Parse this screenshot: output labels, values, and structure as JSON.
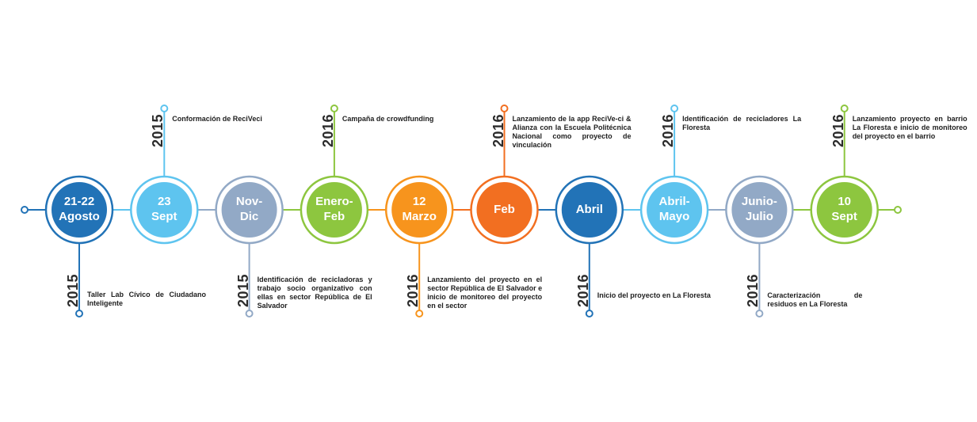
{
  "colors": {
    "dark_blue": "#2273b7",
    "light_blue": "#5ec4ef",
    "gray_blue": "#92a9c6",
    "green": "#8dc63f",
    "orange": "#f7941d",
    "deep_orange": "#f26f21"
  },
  "events": [
    {
      "date_line1": "21-22",
      "date_line2": "Agosto",
      "year": "2015",
      "text": "Taller Lab Cívico de Ciudadano Inteligente",
      "side": "below",
      "color": "#2273b7"
    },
    {
      "date_line1": "23",
      "date_line2": "Sept",
      "year": "2015",
      "text": "Conformación de ReciVeci",
      "side": "above",
      "color": "#5ec4ef"
    },
    {
      "date_line1": "Nov-",
      "date_line2": "Dic",
      "year": "2015",
      "text": "Identificación de recicladoras y trabajo socio organizativo con ellas en sector República de El Salvador",
      "side": "below",
      "color": "#92a9c6"
    },
    {
      "date_line1": "Enero-",
      "date_line2": "Feb",
      "year": "2016",
      "text": "Campaña de crowdfunding",
      "side": "above",
      "color": "#8dc63f"
    },
    {
      "date_line1": "12",
      "date_line2": "Marzo",
      "year": "2016",
      "text": "Lanzamiento del proyecto en el sector República de El Salvador e inicio de monitoreo del proyecto en el sector",
      "side": "below",
      "color": "#f7941d"
    },
    {
      "date_line1": "Feb",
      "date_line2": "",
      "year": "2016",
      "text": "Lanzamiento de la app ReciVe-ci & Alianza con la Escuela Politécnica Nacional como proyecto de vinculación",
      "side": "above",
      "color": "#f26f21"
    },
    {
      "date_line1": "Abril",
      "date_line2": "",
      "year": "2016",
      "text": "Inicio del proyecto en La Floresta",
      "side": "below",
      "color": "#2273b7"
    },
    {
      "date_line1": "Abril-",
      "date_line2": "Mayo",
      "year": "2016",
      "text": "Identificación de recicladores La Floresta",
      "side": "above",
      "color": "#5ec4ef"
    },
    {
      "date_line1": "Junio-",
      "date_line2": "Julio",
      "year": "2016",
      "text": "Caracterización de residuos en La Floresta",
      "side": "below",
      "color": "#92a9c6"
    },
    {
      "date_line1": "10",
      "date_line2": "Sept",
      "year": "2016",
      "text": "Lanzamiento proyecto en barrio La Floresta e inicio de monitoreo del proyecto en el barrio",
      "side": "above",
      "color": "#8dc63f"
    }
  ]
}
